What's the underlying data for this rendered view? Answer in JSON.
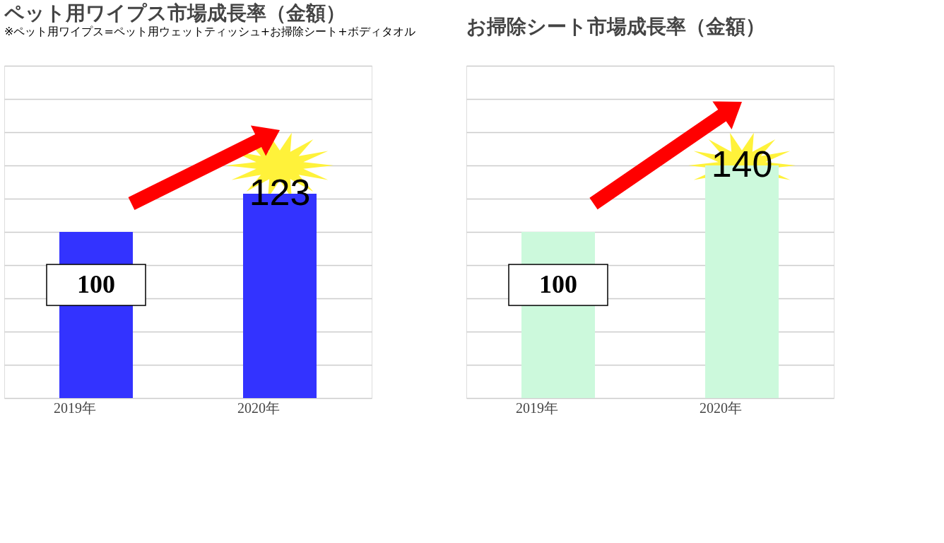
{
  "chart_data": [
    {
      "type": "bar",
      "title": "ペット用ワイプス市場成長率（金額）",
      "subtitle": "※ペット用ワイプス=ペット用ウェットティッシュ+お掃除シート+ボディタオル",
      "categories": [
        "2019年",
        "2020年"
      ],
      "values": [
        100,
        123
      ],
      "color": "#3333ff",
      "ylim": [
        0,
        200
      ],
      "yticks": [
        {
          "value": 0,
          "label": null
        },
        {
          "value": 20,
          "label": null
        },
        {
          "value": 40,
          "label": null
        },
        {
          "value": 60,
          "label": null
        },
        {
          "value": 80,
          "label": null
        },
        {
          "value": 100,
          "label": null
        },
        {
          "value": 120,
          "label": null
        },
        {
          "value": 140,
          "label": null
        },
        {
          "value": 160,
          "label": null
        },
        {
          "value": 180,
          "label": null
        },
        {
          "value": 200,
          "label": null
        }
      ],
      "grid": "y",
      "tick_labels": "x",
      "data_labels": true
    },
    {
      "type": "bar",
      "title": "お掃除シート市場成長率（金額）",
      "categories": [
        "2019年",
        "2020年"
      ],
      "values": [
        100,
        140
      ],
      "color": "#ccf9dc",
      "ylim": [
        0,
        200
      ],
      "yticks": [
        {
          "value": 0,
          "label": null
        },
        {
          "value": 20,
          "label": null
        },
        {
          "value": 40,
          "label": null
        },
        {
          "value": 60,
          "label": null
        },
        {
          "value": 80,
          "label": null
        },
        {
          "value": 100,
          "label": null
        },
        {
          "value": 120,
          "label": null
        },
        {
          "value": 140,
          "label": null
        },
        {
          "value": 160,
          "label": null
        },
        {
          "value": 180,
          "label": null
        },
        {
          "value": 200,
          "label": null
        }
      ],
      "grid": "y",
      "tick_labels": "x",
      "data_labels": true
    }
  ]
}
